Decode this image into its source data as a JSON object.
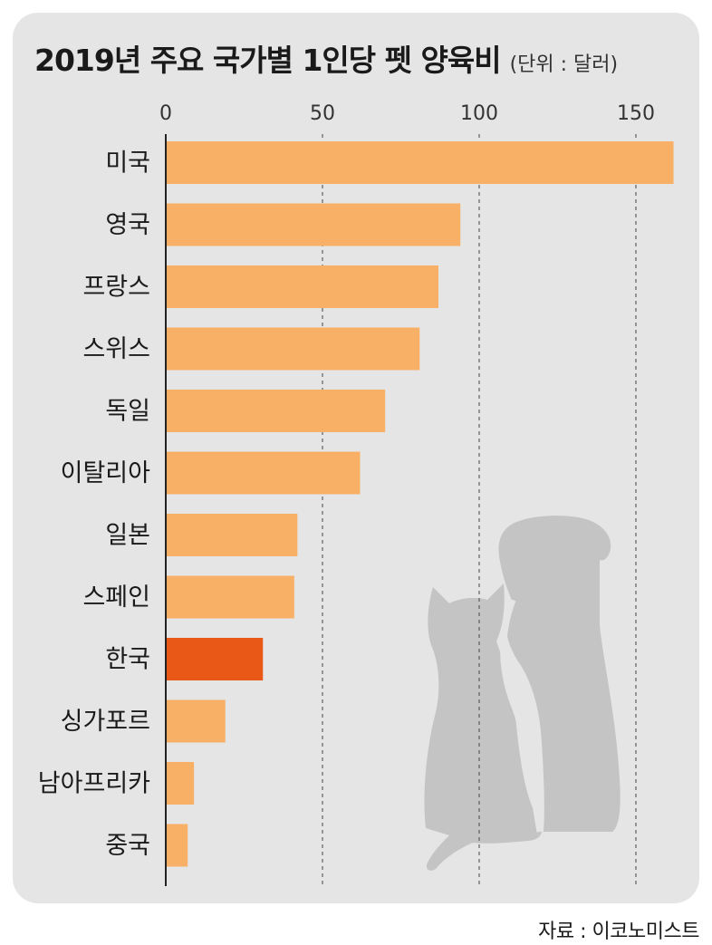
{
  "title": "2019년 주요 국가별 1인당 펫 양육비",
  "unit": "(단위 : 달러)",
  "source": "자료 : 이코노미스트",
  "colors": {
    "bar": "#f7b066",
    "highlight": "#ea5818",
    "panel": "#e5e5e5",
    "silhouette": "#c4c4c4"
  },
  "decoration": [
    "cat-silhouette",
    "dog-silhouette"
  ],
  "chart_data": {
    "type": "bar",
    "orientation": "horizontal",
    "title": "2019년 주요 국가별 1인당 펫 양육비",
    "xlabel": "",
    "ylabel": "",
    "xlim": [
      0,
      165
    ],
    "ticks": [
      "0",
      "50",
      "100",
      "150"
    ],
    "tick_values": [
      0,
      50,
      100,
      150
    ],
    "grid": "vertical-dashed",
    "categories": [
      "미국",
      "영국",
      "프랑스",
      "스위스",
      "독일",
      "이탈리아",
      "일본",
      "스페인",
      "한국",
      "싱가포르",
      "남아프리카",
      "중국"
    ],
    "values": [
      162,
      94,
      87,
      81,
      70,
      62,
      42,
      41,
      31,
      19,
      9,
      7
    ],
    "highlight_category": "한국"
  }
}
